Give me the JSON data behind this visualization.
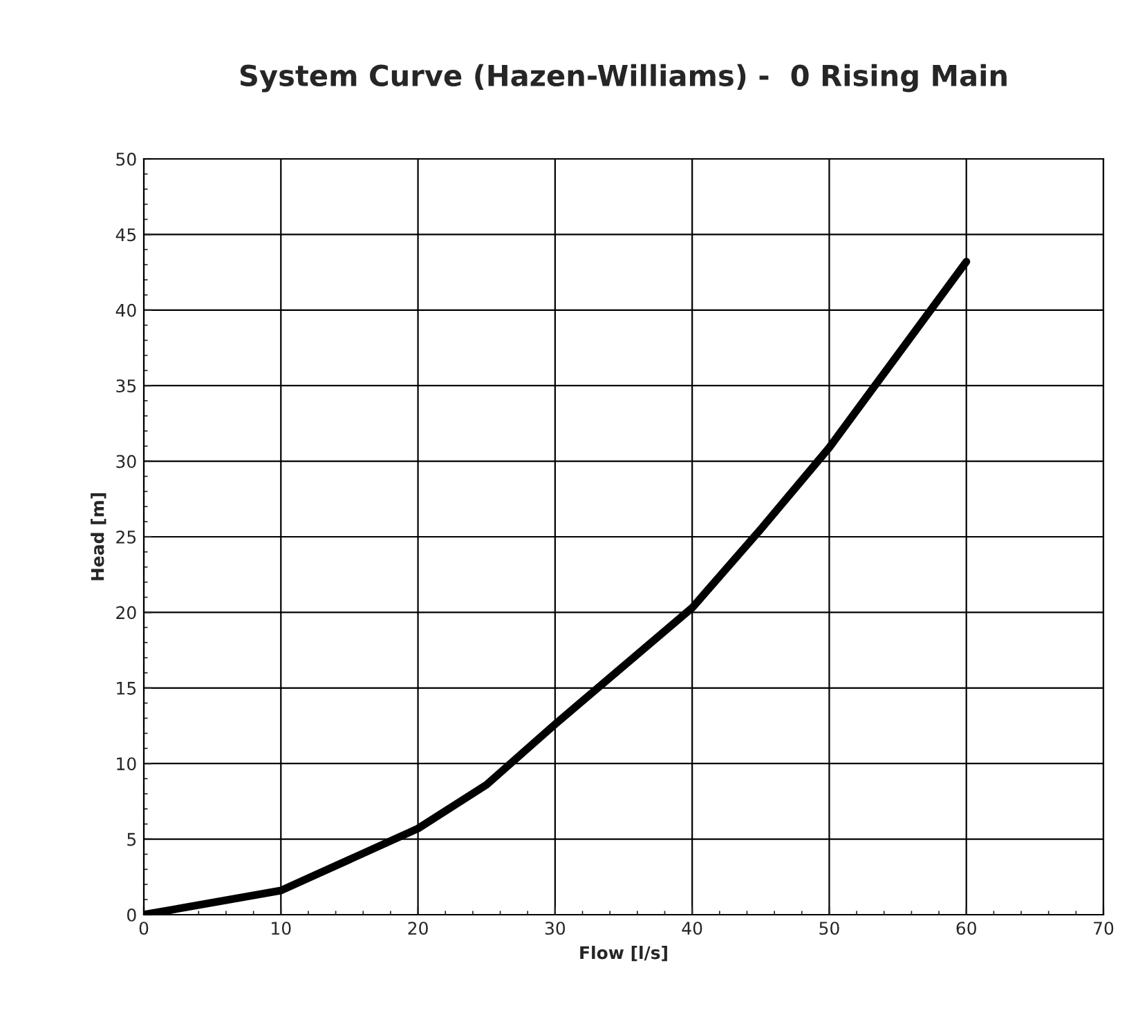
{
  "chart_data": {
    "type": "line",
    "title": "System Curve (Hazen-Williams) -  0 Rising Main",
    "xlabel": "Flow [l/s]",
    "ylabel": "Head [m]",
    "x": [
      0,
      10,
      20,
      25,
      30,
      40,
      45,
      50,
      60
    ],
    "series": [
      {
        "color": "#000000",
        "values": [
          0,
          1.6,
          5.7,
          8.6,
          12.6,
          20.3,
          25.5,
          30.9,
          43.2
        ]
      }
    ],
    "xlim": [
      0,
      70
    ],
    "xticks": [
      0,
      10,
      20,
      30,
      40,
      50,
      60,
      70
    ],
    "ylim": [
      0,
      50
    ],
    "yticks": [
      0,
      5,
      10,
      15,
      20,
      25,
      30,
      35,
      40,
      45,
      50
    ],
    "grid": true,
    "marker": "none",
    "line_style": "solid"
  }
}
